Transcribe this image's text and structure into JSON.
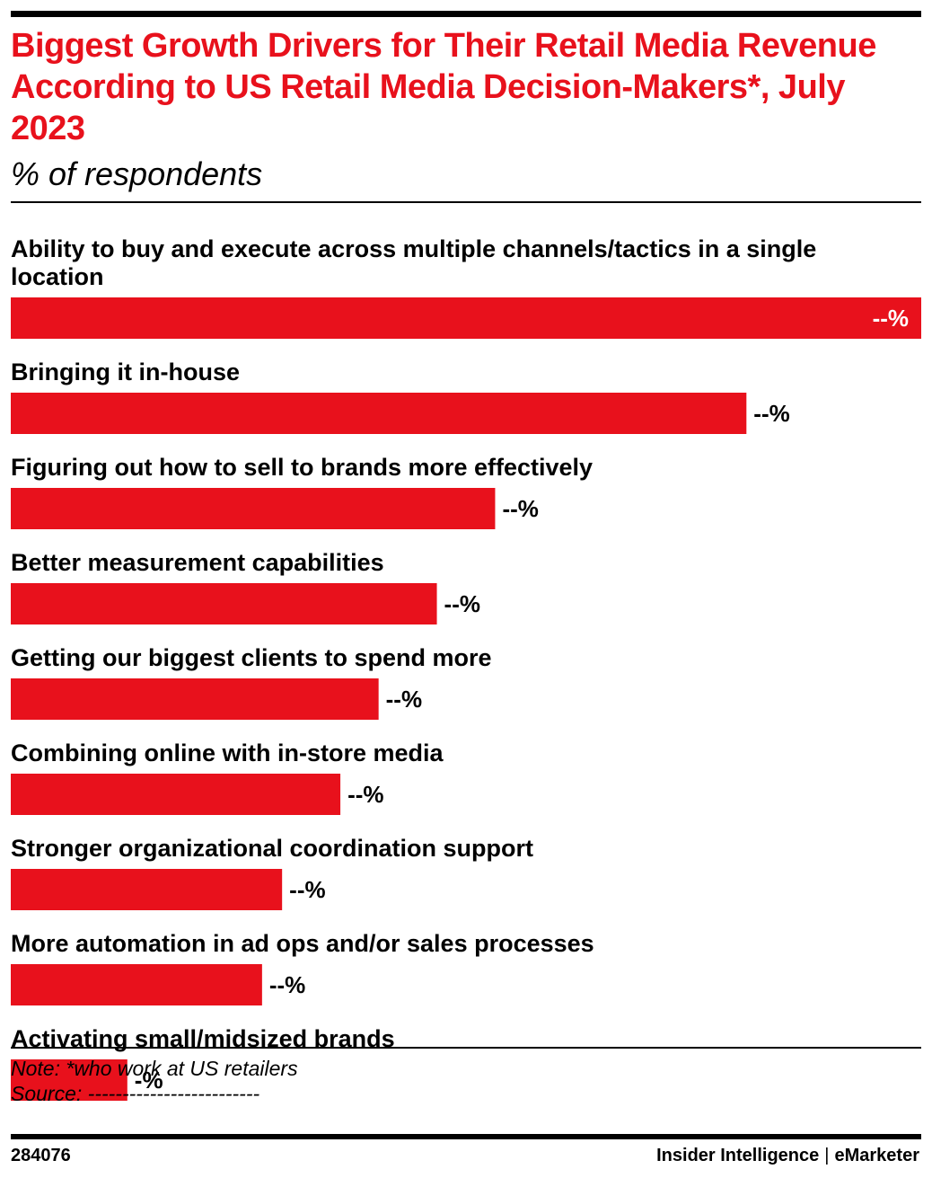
{
  "header": {
    "title": "Biggest Growth Drivers for Their Retail Media Revenue According to US Retail Media Decision-Makers*, July 2023",
    "subtitle": "% of respondents"
  },
  "colors": {
    "bar": "#e8111c",
    "title": "#e8111c",
    "text": "#000000",
    "inside_label": "#ffffff"
  },
  "chart_data": {
    "type": "bar",
    "orientation": "horizontal",
    "title": "Biggest Growth Drivers for Their Retail Media Revenue According to US Retail Media Decision-Makers*, July 2023",
    "subtitle": "% of respondents",
    "categories": [
      "Ability to buy and execute across multiple channels/tactics in a single location",
      "Bringing it in-house",
      "Figuring out how to sell to brands more effectively",
      "Better measurement capabilities",
      "Getting our biggest clients to spend more",
      "Combining online with in-store media",
      "Stronger organizational coordination support",
      "More automation in ad ops and/or sales processes",
      "Activating small/midsized brands"
    ],
    "category_lines": [
      [
        "Ability to buy and execute across multiple channels/tactics in a single",
        "location"
      ],
      [
        "Bringing it in-house"
      ],
      [
        "Figuring out how to sell to brands more effectively"
      ],
      [
        "Better measurement capabilities"
      ],
      [
        "Getting our biggest clients to spend more"
      ],
      [
        "Combining online with in-store media"
      ],
      [
        "Stronger organizational coordination support"
      ],
      [
        "More automation in ad ops and/or sales processes"
      ],
      [
        "Activating small/midsized brands"
      ]
    ],
    "values": [
      100,
      80.8,
      53.2,
      46.8,
      40.4,
      36.2,
      29.8,
      27.6,
      12.8
    ],
    "value_labels": [
      "--%",
      "--%",
      "--%",
      "--%",
      "--%",
      "--%",
      "--%",
      "--%",
      "-%"
    ],
    "xlim": [
      0,
      100
    ],
    "grid": false,
    "legend": "none"
  },
  "footer": {
    "note": "Note: *who work at US retailers",
    "source": "Source: -------------------------",
    "chart_id": "284076",
    "brand_left": "Insider Intelligence",
    "brand_sep": "|",
    "brand_right": "eMarketer"
  }
}
